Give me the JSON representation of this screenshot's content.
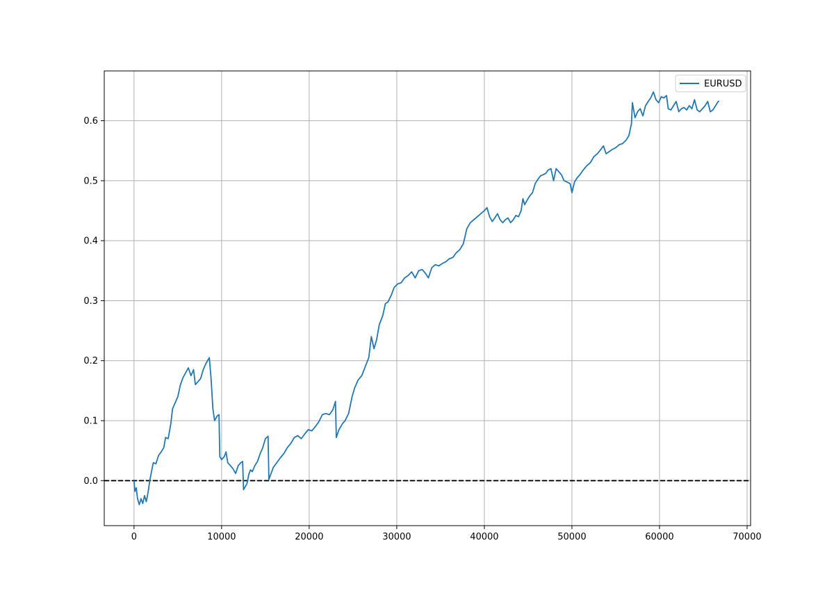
{
  "chart_data": {
    "type": "line",
    "title": "",
    "xlabel": "",
    "ylabel": "",
    "xlim": [
      -3400,
      70400
    ],
    "ylim": [
      -0.075,
      0.683
    ],
    "x_ticks": [
      0,
      10000,
      20000,
      30000,
      40000,
      50000,
      60000,
      70000
    ],
    "x_tick_labels": [
      "0",
      "10000",
      "20000",
      "30000",
      "40000",
      "50000",
      "60000",
      "70000"
    ],
    "y_ticks": [
      0.0,
      0.1,
      0.2,
      0.3,
      0.4,
      0.5,
      0.6
    ],
    "y_tick_labels": [
      "0.0",
      "0.1",
      "0.2",
      "0.3",
      "0.4",
      "0.5",
      "0.6"
    ],
    "grid": true,
    "legend_placement": "upper right",
    "reference_line": {
      "y": 0.0,
      "style": "dashed",
      "color": "#000000"
    },
    "series": [
      {
        "name": "EURUSD",
        "color": "#1f77b4",
        "points": [
          [
            0,
            0.0
          ],
          [
            100,
            -0.018
          ],
          [
            250,
            -0.012
          ],
          [
            400,
            -0.03
          ],
          [
            600,
            -0.04
          ],
          [
            800,
            -0.03
          ],
          [
            1000,
            -0.038
          ],
          [
            1200,
            -0.025
          ],
          [
            1400,
            -0.035
          ],
          [
            1600,
            -0.02
          ],
          [
            1800,
            0.0
          ],
          [
            2000,
            0.015
          ],
          [
            2200,
            0.03
          ],
          [
            2500,
            0.028
          ],
          [
            2800,
            0.042
          ],
          [
            3100,
            0.048
          ],
          [
            3400,
            0.055
          ],
          [
            3600,
            0.072
          ],
          [
            3900,
            0.07
          ],
          [
            4200,
            0.095
          ],
          [
            4400,
            0.12
          ],
          [
            4700,
            0.13
          ],
          [
            5000,
            0.14
          ],
          [
            5300,
            0.16
          ],
          [
            5600,
            0.172
          ],
          [
            5900,
            0.18
          ],
          [
            6200,
            0.188
          ],
          [
            6500,
            0.175
          ],
          [
            6800,
            0.185
          ],
          [
            7000,
            0.16
          ],
          [
            7300,
            0.165
          ],
          [
            7600,
            0.17
          ],
          [
            7900,
            0.185
          ],
          [
            8200,
            0.195
          ],
          [
            8600,
            0.205
          ],
          [
            8800,
            0.17
          ],
          [
            9000,
            0.12
          ],
          [
            9200,
            0.1
          ],
          [
            9500,
            0.108
          ],
          [
            9700,
            0.11
          ],
          [
            9800,
            0.04
          ],
          [
            10000,
            0.035
          ],
          [
            10300,
            0.04
          ],
          [
            10500,
            0.048
          ],
          [
            10700,
            0.03
          ],
          [
            11000,
            0.025
          ],
          [
            11300,
            0.02
          ],
          [
            11600,
            0.012
          ],
          [
            11900,
            0.025
          ],
          [
            12200,
            0.03
          ],
          [
            12400,
            0.032
          ],
          [
            12500,
            -0.015
          ],
          [
            12700,
            -0.01
          ],
          [
            12900,
            -0.005
          ],
          [
            13100,
            0.01
          ],
          [
            13300,
            0.018
          ],
          [
            13500,
            0.015
          ],
          [
            13800,
            0.025
          ],
          [
            14100,
            0.032
          ],
          [
            14400,
            0.045
          ],
          [
            14700,
            0.055
          ],
          [
            15000,
            0.07
          ],
          [
            15300,
            0.074
          ],
          [
            15400,
            0.002
          ],
          [
            15600,
            0.01
          ],
          [
            15900,
            0.022
          ],
          [
            16300,
            0.03
          ],
          [
            16700,
            0.038
          ],
          [
            17100,
            0.045
          ],
          [
            17500,
            0.055
          ],
          [
            17900,
            0.062
          ],
          [
            18300,
            0.072
          ],
          [
            18700,
            0.075
          ],
          [
            19100,
            0.07
          ],
          [
            19500,
            0.078
          ],
          [
            19900,
            0.085
          ],
          [
            20300,
            0.083
          ],
          [
            20700,
            0.09
          ],
          [
            21100,
            0.098
          ],
          [
            21500,
            0.11
          ],
          [
            21900,
            0.112
          ],
          [
            22300,
            0.11
          ],
          [
            22700,
            0.118
          ],
          [
            23000,
            0.132
          ],
          [
            23100,
            0.072
          ],
          [
            23400,
            0.085
          ],
          [
            23800,
            0.095
          ],
          [
            24100,
            0.1
          ],
          [
            24500,
            0.112
          ],
          [
            24900,
            0.14
          ],
          [
            25200,
            0.155
          ],
          [
            25600,
            0.168
          ],
          [
            26000,
            0.175
          ],
          [
            26400,
            0.19
          ],
          [
            26800,
            0.205
          ],
          [
            27100,
            0.24
          ],
          [
            27400,
            0.22
          ],
          [
            27700,
            0.235
          ],
          [
            28000,
            0.26
          ],
          [
            28400,
            0.275
          ],
          [
            28700,
            0.295
          ],
          [
            29000,
            0.298
          ],
          [
            29400,
            0.31
          ],
          [
            29700,
            0.322
          ],
          [
            30100,
            0.328
          ],
          [
            30500,
            0.33
          ],
          [
            30900,
            0.338
          ],
          [
            31300,
            0.342
          ],
          [
            31700,
            0.348
          ],
          [
            32100,
            0.338
          ],
          [
            32500,
            0.35
          ],
          [
            32900,
            0.352
          ],
          [
            33300,
            0.345
          ],
          [
            33600,
            0.338
          ],
          [
            34000,
            0.355
          ],
          [
            34400,
            0.36
          ],
          [
            34800,
            0.358
          ],
          [
            35200,
            0.362
          ],
          [
            35600,
            0.365
          ],
          [
            36000,
            0.37
          ],
          [
            36400,
            0.372
          ],
          [
            36800,
            0.38
          ],
          [
            37200,
            0.385
          ],
          [
            37600,
            0.395
          ],
          [
            38000,
            0.42
          ],
          [
            38400,
            0.43
          ],
          [
            38800,
            0.435
          ],
          [
            39200,
            0.44
          ],
          [
            39600,
            0.445
          ],
          [
            40000,
            0.45
          ],
          [
            40300,
            0.455
          ],
          [
            40600,
            0.44
          ],
          [
            40900,
            0.432
          ],
          [
            41200,
            0.438
          ],
          [
            41500,
            0.445
          ],
          [
            41800,
            0.435
          ],
          [
            42100,
            0.43
          ],
          [
            42400,
            0.435
          ],
          [
            42700,
            0.438
          ],
          [
            43000,
            0.43
          ],
          [
            43300,
            0.435
          ],
          [
            43600,
            0.442
          ],
          [
            43900,
            0.44
          ],
          [
            44200,
            0.45
          ],
          [
            44400,
            0.47
          ],
          [
            44600,
            0.46
          ],
          [
            44900,
            0.468
          ],
          [
            45200,
            0.475
          ],
          [
            45500,
            0.48
          ],
          [
            45800,
            0.495
          ],
          [
            46100,
            0.502
          ],
          [
            46400,
            0.508
          ],
          [
            46700,
            0.51
          ],
          [
            47000,
            0.512
          ],
          [
            47300,
            0.518
          ],
          [
            47600,
            0.52
          ],
          [
            47900,
            0.5
          ],
          [
            48200,
            0.52
          ],
          [
            48500,
            0.515
          ],
          [
            48800,
            0.51
          ],
          [
            49100,
            0.5
          ],
          [
            49400,
            0.498
          ],
          [
            49800,
            0.495
          ],
          [
            50000,
            0.48
          ],
          [
            50300,
            0.498
          ],
          [
            50600,
            0.505
          ],
          [
            50900,
            0.51
          ],
          [
            51300,
            0.518
          ],
          [
            51700,
            0.525
          ],
          [
            52100,
            0.53
          ],
          [
            52500,
            0.54
          ],
          [
            52900,
            0.545
          ],
          [
            53300,
            0.552
          ],
          [
            53600,
            0.558
          ],
          [
            53900,
            0.545
          ],
          [
            54200,
            0.548
          ],
          [
            54600,
            0.552
          ],
          [
            55000,
            0.555
          ],
          [
            55400,
            0.56
          ],
          [
            55800,
            0.562
          ],
          [
            56200,
            0.568
          ],
          [
            56500,
            0.575
          ],
          [
            56800,
            0.595
          ],
          [
            56900,
            0.63
          ],
          [
            57200,
            0.605
          ],
          [
            57500,
            0.615
          ],
          [
            57800,
            0.62
          ],
          [
            58100,
            0.608
          ],
          [
            58400,
            0.625
          ],
          [
            58700,
            0.632
          ],
          [
            59000,
            0.638
          ],
          [
            59300,
            0.648
          ],
          [
            59600,
            0.635
          ],
          [
            59900,
            0.63
          ],
          [
            60200,
            0.64
          ],
          [
            60500,
            0.638
          ],
          [
            60800,
            0.642
          ],
          [
            61000,
            0.62
          ],
          [
            61300,
            0.618
          ],
          [
            61600,
            0.625
          ],
          [
            61900,
            0.632
          ],
          [
            62200,
            0.615
          ],
          [
            62500,
            0.62
          ],
          [
            62800,
            0.622
          ],
          [
            63100,
            0.618
          ],
          [
            63400,
            0.625
          ],
          [
            63700,
            0.62
          ],
          [
            64000,
            0.635
          ],
          [
            64300,
            0.618
          ],
          [
            64600,
            0.615
          ],
          [
            64900,
            0.62
          ],
          [
            65200,
            0.625
          ],
          [
            65500,
            0.632
          ],
          [
            65800,
            0.615
          ],
          [
            66100,
            0.618
          ],
          [
            66400,
            0.625
          ],
          [
            66700,
            0.632
          ],
          [
            66800,
            0.633
          ]
        ]
      }
    ]
  }
}
